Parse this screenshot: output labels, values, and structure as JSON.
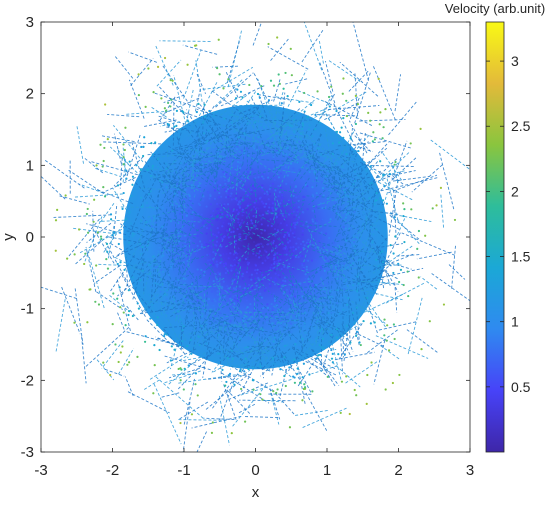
{
  "chart_data": {
    "type": "scatter",
    "title": "",
    "xlabel": "x",
    "ylabel": "y",
    "xlim": [
      -3,
      3
    ],
    "ylim": [
      -3,
      3
    ],
    "xticks": [
      "-3",
      "-2",
      "-1",
      "0",
      "1",
      "2",
      "3"
    ],
    "yticks": [
      "-3",
      "-2",
      "-1",
      "0",
      "1",
      "2",
      "3"
    ],
    "grid": false,
    "colorbar": {
      "label": "Velocity (arb.unit)",
      "range": [
        0,
        3.3
      ],
      "ticks": [
        "0.5",
        "1",
        "1.5",
        "2",
        "2.5",
        "3"
      ],
      "colormap": "parula",
      "colors": [
        "#3e26a8",
        "#4743f8",
        "#2f8af0",
        "#1ba8d6",
        "#2ebd9b",
        "#8ac53e",
        "#e3ba3a",
        "#f9f915"
      ]
    },
    "series": [
      {
        "style": "dashed-trajectory",
        "description_points_extent": 2.8,
        "speed_relation": "velocity increases with distance from origin",
        "core_speed": 0.0,
        "edge_speed": 3.3
      }
    ]
  }
}
